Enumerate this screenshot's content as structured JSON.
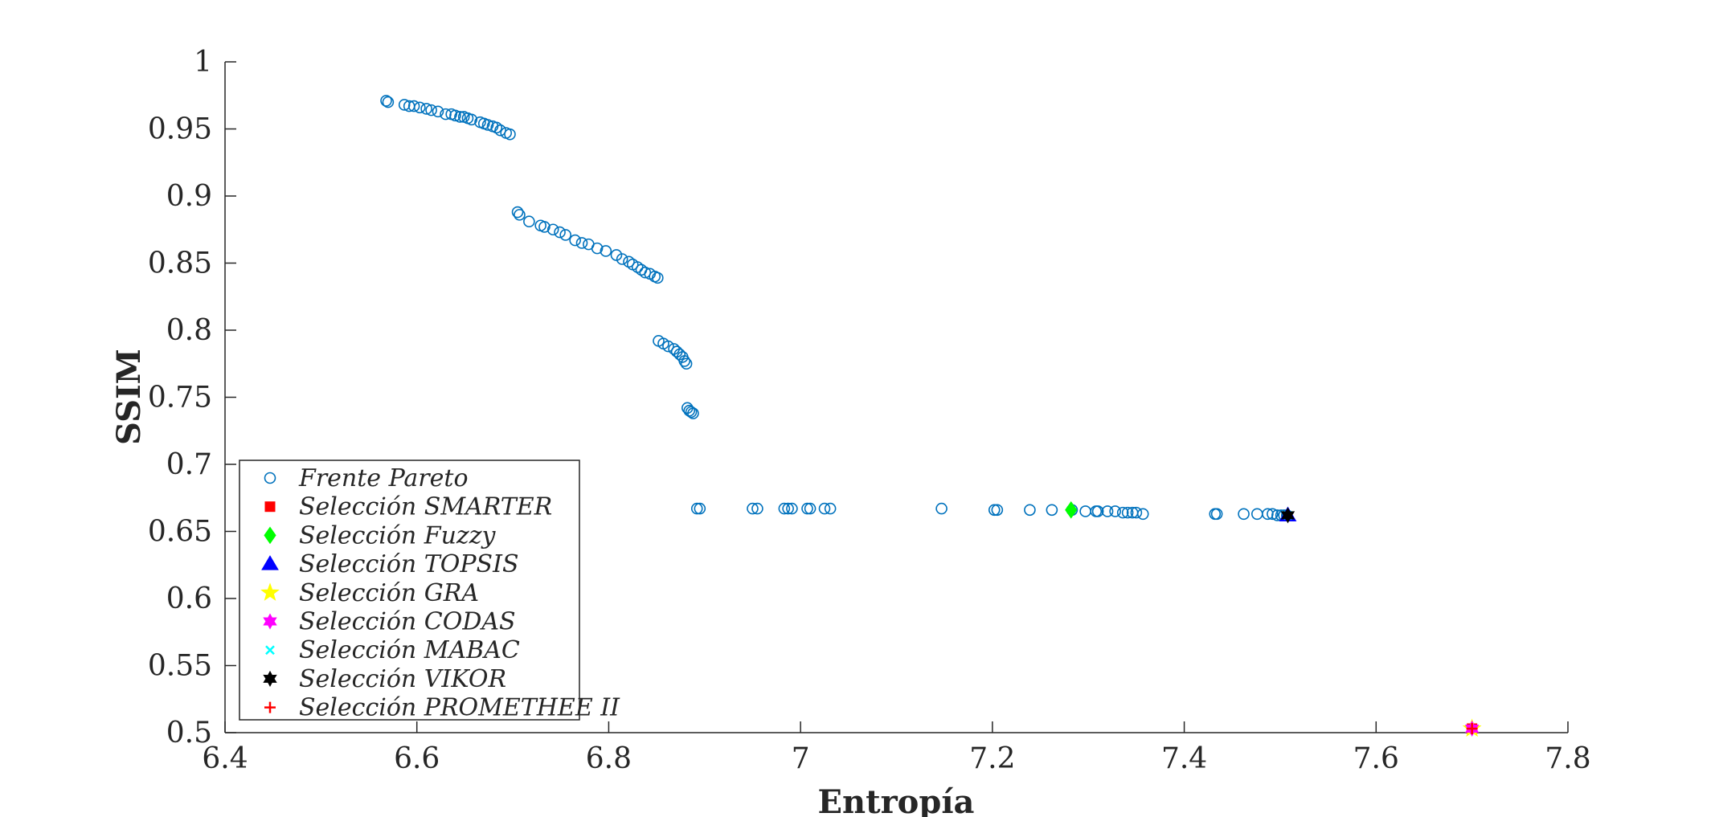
{
  "chart_data": {
    "type": "scatter",
    "xlabel": "Entropía",
    "ylabel": "SSIM",
    "xlim": [
      6.4,
      7.8
    ],
    "ylim": [
      0.5,
      1.0
    ],
    "x_ticks": [
      "6.4",
      "6.6",
      "6.8",
      "7",
      "7.2",
      "7.4",
      "7.6",
      "7.8"
    ],
    "y_ticks": [
      "0.5",
      "0.55",
      "0.6",
      "0.65",
      "0.7",
      "0.75",
      "0.8",
      "0.85",
      "0.9",
      "0.95",
      "1"
    ],
    "grid": false,
    "legend_position": "bottom-left",
    "series": [
      {
        "name": "Frente Pareto",
        "marker": "circle-open",
        "color": "#0072BD",
        "points": [
          [
            6.568,
            0.971
          ],
          [
            6.57,
            0.97
          ],
          [
            6.587,
            0.968
          ],
          [
            6.592,
            0.967
          ],
          [
            6.597,
            0.967
          ],
          [
            6.603,
            0.966
          ],
          [
            6.61,
            0.965
          ],
          [
            6.615,
            0.964
          ],
          [
            6.622,
            0.963
          ],
          [
            6.63,
            0.961
          ],
          [
            6.636,
            0.961
          ],
          [
            6.64,
            0.96
          ],
          [
            6.645,
            0.959
          ],
          [
            6.649,
            0.959
          ],
          [
            6.653,
            0.958
          ],
          [
            6.657,
            0.957
          ],
          [
            6.666,
            0.955
          ],
          [
            6.67,
            0.954
          ],
          [
            6.674,
            0.953
          ],
          [
            6.679,
            0.952
          ],
          [
            6.683,
            0.951
          ],
          [
            6.687,
            0.949
          ],
          [
            6.693,
            0.947
          ],
          [
            6.697,
            0.946
          ],
          [
            6.705,
            0.888
          ],
          [
            6.707,
            0.886
          ],
          [
            6.717,
            0.881
          ],
          [
            6.729,
            0.878
          ],
          [
            6.733,
            0.877
          ],
          [
            6.742,
            0.875
          ],
          [
            6.749,
            0.873
          ],
          [
            6.755,
            0.871
          ],
          [
            6.765,
            0.867
          ],
          [
            6.772,
            0.865
          ],
          [
            6.779,
            0.864
          ],
          [
            6.788,
            0.861
          ],
          [
            6.797,
            0.859
          ],
          [
            6.808,
            0.856
          ],
          [
            6.814,
            0.853
          ],
          [
            6.821,
            0.851
          ],
          [
            6.825,
            0.849
          ],
          [
            6.83,
            0.847
          ],
          [
            6.834,
            0.845
          ],
          [
            6.838,
            0.843
          ],
          [
            6.843,
            0.842
          ],
          [
            6.848,
            0.84
          ],
          [
            6.851,
            0.839
          ],
          [
            6.852,
            0.792
          ],
          [
            6.857,
            0.79
          ],
          [
            6.862,
            0.788
          ],
          [
            6.868,
            0.786
          ],
          [
            6.871,
            0.784
          ],
          [
            6.874,
            0.782
          ],
          [
            6.877,
            0.78
          ],
          [
            6.879,
            0.777
          ],
          [
            6.881,
            0.775
          ],
          [
            6.882,
            0.742
          ],
          [
            6.884,
            0.74
          ],
          [
            6.886,
            0.739
          ],
          [
            6.888,
            0.738
          ],
          [
            6.892,
            0.667
          ],
          [
            6.895,
            0.667
          ],
          [
            6.95,
            0.667
          ],
          [
            6.955,
            0.667
          ],
          [
            6.983,
            0.667
          ],
          [
            6.987,
            0.667
          ],
          [
            6.991,
            0.667
          ],
          [
            7.007,
            0.667
          ],
          [
            7.01,
            0.667
          ],
          [
            7.025,
            0.667
          ],
          [
            7.031,
            0.667
          ],
          [
            7.147,
            0.667
          ],
          [
            7.202,
            0.666
          ],
          [
            7.205,
            0.666
          ],
          [
            7.239,
            0.666
          ],
          [
            7.262,
            0.666
          ],
          [
            7.283,
            0.666
          ],
          [
            7.297,
            0.665
          ],
          [
            7.308,
            0.665
          ],
          [
            7.31,
            0.665
          ],
          [
            7.32,
            0.665
          ],
          [
            7.328,
            0.665
          ],
          [
            7.336,
            0.664
          ],
          [
            7.341,
            0.664
          ],
          [
            7.346,
            0.664
          ],
          [
            7.35,
            0.664
          ],
          [
            7.357,
            0.663
          ],
          [
            7.432,
            0.663
          ],
          [
            7.434,
            0.663
          ],
          [
            7.462,
            0.663
          ],
          [
            7.476,
            0.663
          ],
          [
            7.487,
            0.663
          ],
          [
            7.492,
            0.663
          ],
          [
            7.497,
            0.662
          ],
          [
            7.501,
            0.662
          ],
          [
            7.504,
            0.662
          ],
          [
            7.507,
            0.662
          ]
        ]
      },
      {
        "name": "Selección SMARTER",
        "marker": "square",
        "color": "#FF0000",
        "points": [
          [
            7.7,
            0.503
          ]
        ]
      },
      {
        "name": "Selección Fuzzy",
        "marker": "diamond",
        "color": "#00FF00",
        "points": [
          [
            7.282,
            0.666
          ]
        ]
      },
      {
        "name": "Selección TOPSIS",
        "marker": "triangle",
        "color": "#0000FF",
        "points": [
          [
            7.508,
            0.662
          ]
        ]
      },
      {
        "name": "Selección GRA",
        "marker": "star5",
        "color": "#FFFF00",
        "points": [
          [
            7.7,
            0.503
          ]
        ]
      },
      {
        "name": "Selección CODAS",
        "marker": "hexagram",
        "color": "#FF00FF",
        "points": [
          [
            7.7,
            0.503
          ]
        ]
      },
      {
        "name": "Selección MABAC",
        "marker": "x",
        "color": "#00FFFF",
        "points": [
          [
            7.508,
            0.662
          ]
        ]
      },
      {
        "name": "Selección VIKOR",
        "marker": "hexagram",
        "color": "#000000",
        "points": [
          [
            7.508,
            0.662
          ]
        ]
      },
      {
        "name": "Selección PROMETHEE II",
        "marker": "plus",
        "color": "#FF0000",
        "points": [
          [
            7.7,
            0.503
          ]
        ]
      }
    ]
  }
}
